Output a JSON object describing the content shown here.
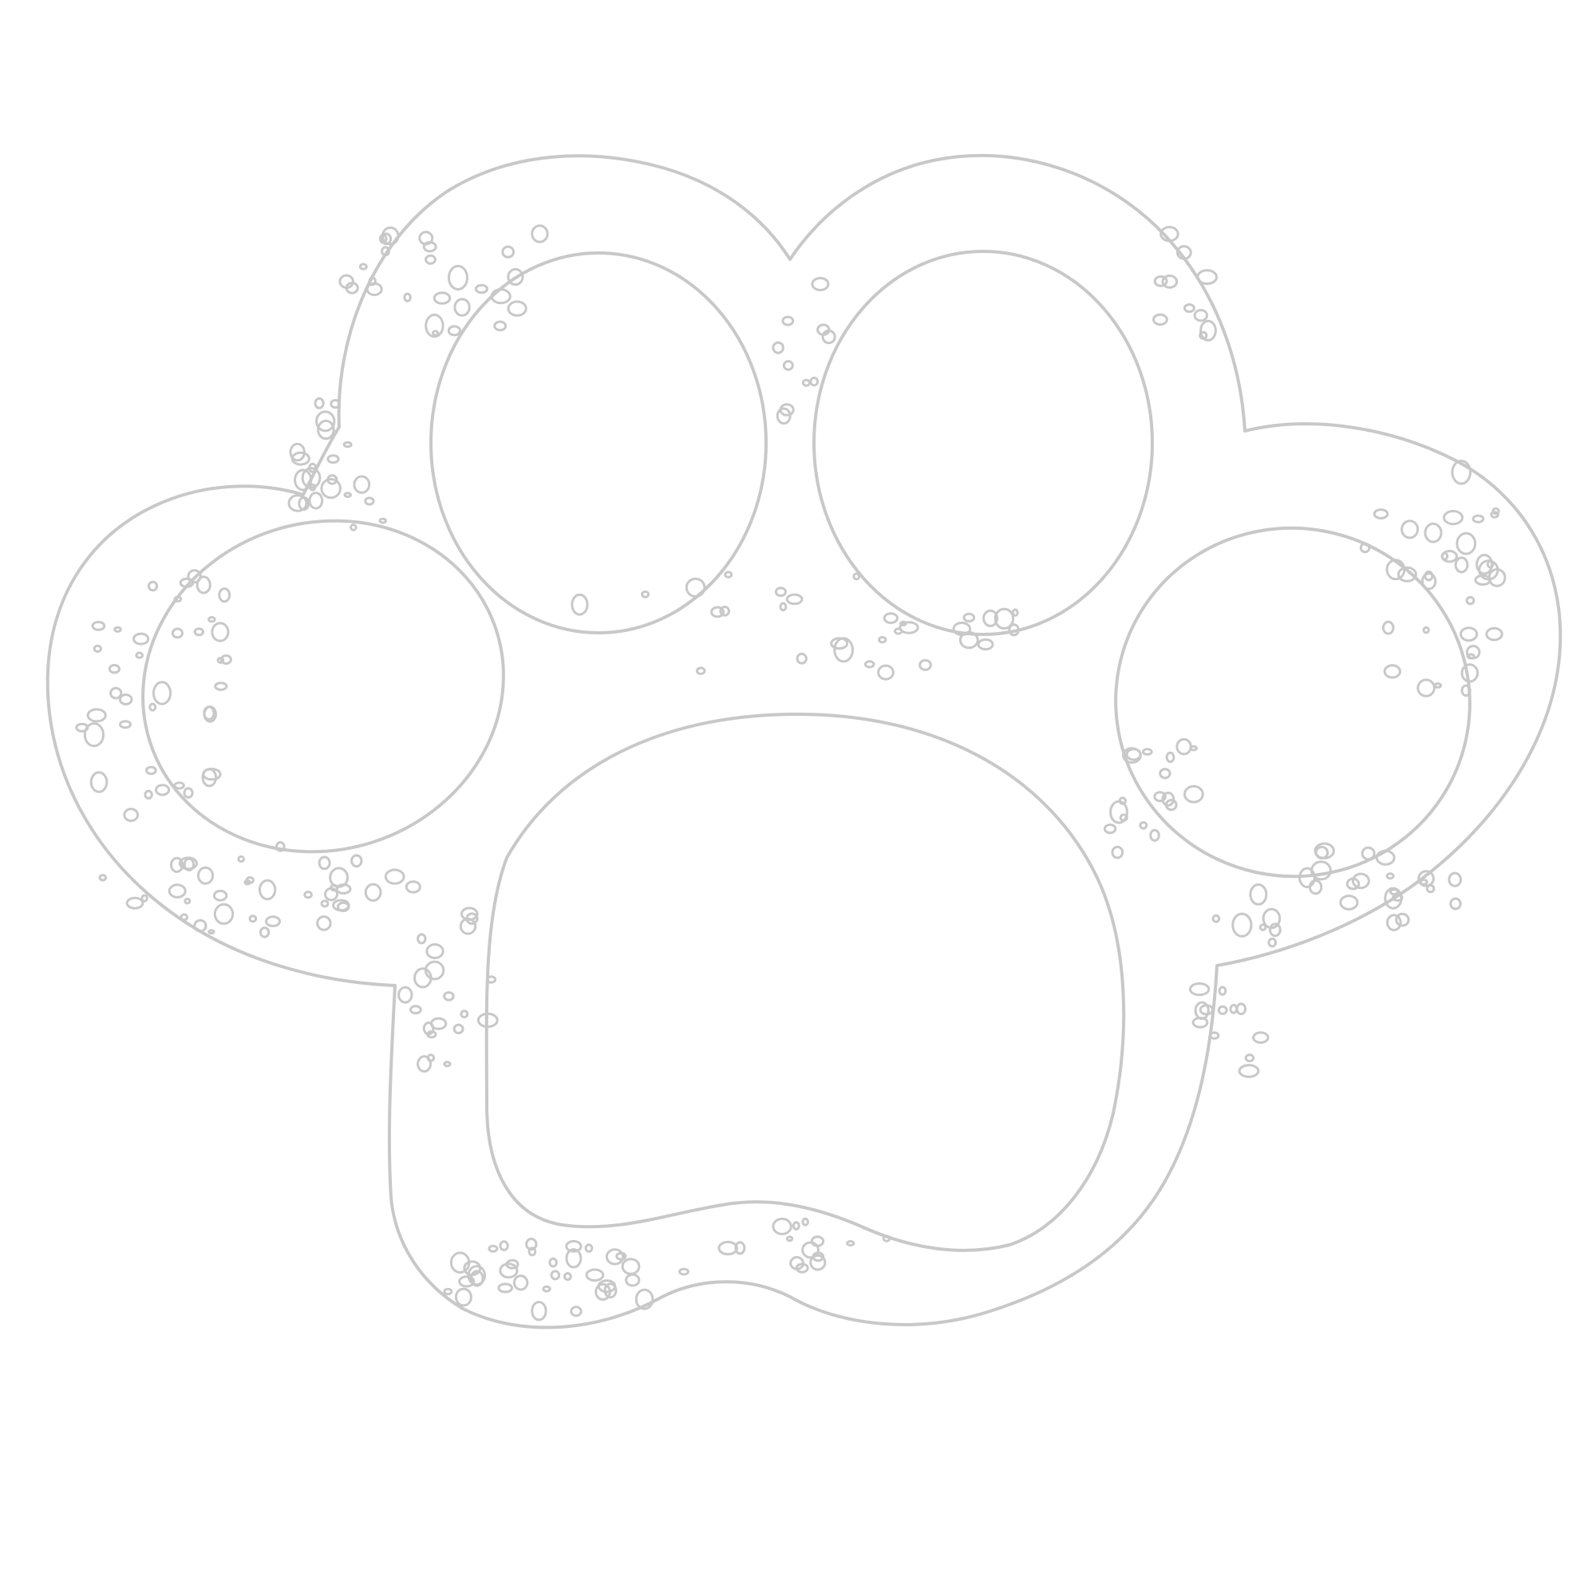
{
  "illustration": {
    "subject": "paw-print-outline",
    "style": "grunge-outline",
    "colors": {
      "background": "#ffffff",
      "line": "#c8c8c8"
    },
    "pads": {
      "toe_count": 4,
      "main_pad_count": 1
    }
  }
}
